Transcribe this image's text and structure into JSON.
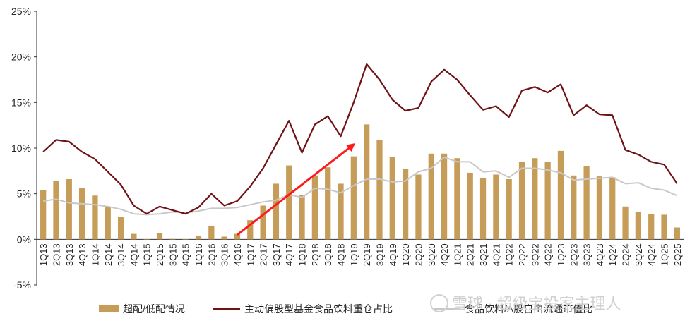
{
  "chart_data": {
    "type": "bar",
    "categories": [
      "1Q13",
      "2Q13",
      "3Q13",
      "4Q13",
      "1Q14",
      "2Q14",
      "3Q14",
      "4Q14",
      "1Q15",
      "2Q15",
      "3Q15",
      "4Q15",
      "1Q16",
      "2Q16",
      "3Q16",
      "4Q16",
      "1Q17",
      "2Q17",
      "3Q17",
      "4Q17",
      "1Q18",
      "2Q18",
      "3Q18",
      "4Q18",
      "1Q19",
      "2Q19",
      "3Q19",
      "4Q19",
      "1Q20",
      "2Q20",
      "3Q20",
      "4Q20",
      "1Q21",
      "2Q21",
      "3Q21",
      "4Q21",
      "1Q22",
      "2Q22",
      "3Q22",
      "4Q22",
      "1Q23",
      "2Q23",
      "3Q23",
      "4Q23",
      "1Q24",
      "2Q24",
      "3Q24",
      "4Q24",
      "1Q25",
      "2Q25"
    ],
    "y_ticks": [
      "25%",
      "20%",
      "15%",
      "10%",
      "5%",
      "0%",
      "-5%"
    ],
    "ylim": [
      -5,
      25
    ],
    "y_unit": "%",
    "grid": false,
    "legend_position": "bottom",
    "series": [
      {
        "name": "超配/低配情况",
        "kind": "bar",
        "color": "#c69c59",
        "values": [
          5.4,
          6.4,
          6.6,
          5.6,
          4.8,
          3.6,
          2.5,
          0.6,
          0.0,
          0.7,
          0.05,
          0.0,
          0.4,
          1.5,
          0.3,
          0.6,
          2.1,
          3.7,
          6.1,
          8.1,
          4.9,
          7.0,
          7.9,
          6.1,
          9.1,
          12.6,
          10.9,
          9.0,
          7.7,
          7.1,
          9.4,
          9.4,
          8.9,
          7.3,
          6.7,
          7.1,
          6.6,
          8.5,
          8.9,
          8.5,
          9.7,
          7.0,
          8.0,
          6.9,
          6.8,
          3.6,
          3.0,
          2.8,
          2.7,
          1.3
        ]
      },
      {
        "name": "主动偏股型基金食品饮料重仓占比",
        "kind": "line",
        "color": "#6e1216",
        "values": [
          9.6,
          10.9,
          10.7,
          9.6,
          8.8,
          7.4,
          6.0,
          3.7,
          2.8,
          3.6,
          3.2,
          2.8,
          3.5,
          5.0,
          3.7,
          4.2,
          5.8,
          7.8,
          10.4,
          13.0,
          9.5,
          12.6,
          13.5,
          11.3,
          15.0,
          19.2,
          17.5,
          15.3,
          14.1,
          14.4,
          17.3,
          18.6,
          17.5,
          15.8,
          14.2,
          14.6,
          13.4,
          16.3,
          16.7,
          16.1,
          17.0,
          13.6,
          14.7,
          13.7,
          13.6,
          9.8,
          9.3,
          8.5,
          8.2,
          6.1
        ]
      },
      {
        "name": "食品饮料/A股自由流通市值比",
        "kind": "line",
        "color": "#c8c8c8",
        "values": [
          4.2,
          4.4,
          4.0,
          3.9,
          3.8,
          3.6,
          3.3,
          2.8,
          2.7,
          2.8,
          3.0,
          2.9,
          3.1,
          3.4,
          3.4,
          3.5,
          3.8,
          4.1,
          4.3,
          4.9,
          4.6,
          5.6,
          5.5,
          5.1,
          5.9,
          6.6,
          6.6,
          6.3,
          6.4,
          7.4,
          7.8,
          9.0,
          8.5,
          8.5,
          7.4,
          7.5,
          6.8,
          7.8,
          7.8,
          7.6,
          7.3,
          6.5,
          6.6,
          6.7,
          6.8,
          6.1,
          6.2,
          5.6,
          5.4,
          4.8
        ]
      }
    ],
    "annotation": {
      "type": "arrow",
      "color": "#ff1a1a",
      "from": {
        "x": "4Q16",
        "y": 0.5
      },
      "to": {
        "x": "1Q19",
        "y": 10.4
      }
    }
  },
  "watermark": {
    "text": "雪球 · 超级宝投家主理人"
  }
}
